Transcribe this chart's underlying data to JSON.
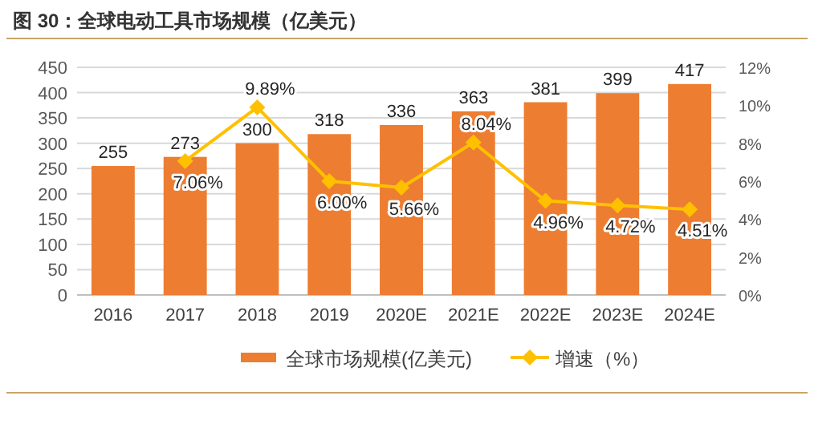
{
  "chart_data": {
    "type": "bar",
    "title": "图 30：全球电动工具市场规模（亿美元）",
    "categories": [
      "2016",
      "2017",
      "2018",
      "2019",
      "2020E",
      "2021E",
      "2022E",
      "2023E",
      "2024E"
    ],
    "series": [
      {
        "name": "全球市场规模(亿美元)",
        "color": "#ed7d31",
        "values": [
          255,
          273,
          300,
          318,
          336,
          363,
          381,
          399,
          417
        ]
      },
      {
        "name": "增速（%）",
        "type": "line",
        "axis": "y2",
        "color": "#ffc000",
        "marker": "diamond",
        "values": [
          null,
          7.06,
          9.89,
          6.0,
          5.66,
          8.04,
          4.96,
          4.72,
          4.51
        ],
        "value_labels": [
          null,
          "7.06%",
          "9.89%",
          "6.00%",
          "5.66%",
          "8.04%",
          "4.96%",
          "4.72%",
          "4.51%"
        ]
      }
    ],
    "ylim": [
      0,
      450
    ],
    "yticks": [
      0,
      50,
      100,
      150,
      200,
      250,
      300,
      350,
      400,
      450
    ],
    "y2lim": [
      0,
      12
    ],
    "y2ticks": [
      {
        "value": 0,
        "label": "0%"
      },
      {
        "value": 2,
        "label": "2%"
      },
      {
        "value": 4,
        "label": "4%"
      },
      {
        "value": 6,
        "label": "6%"
      },
      {
        "value": 8,
        "label": "8%"
      },
      {
        "value": 10,
        "label": "10%"
      },
      {
        "value": 12,
        "label": "12%"
      }
    ],
    "grid": "y",
    "legend": "bottom",
    "data_labels": true
  }
}
